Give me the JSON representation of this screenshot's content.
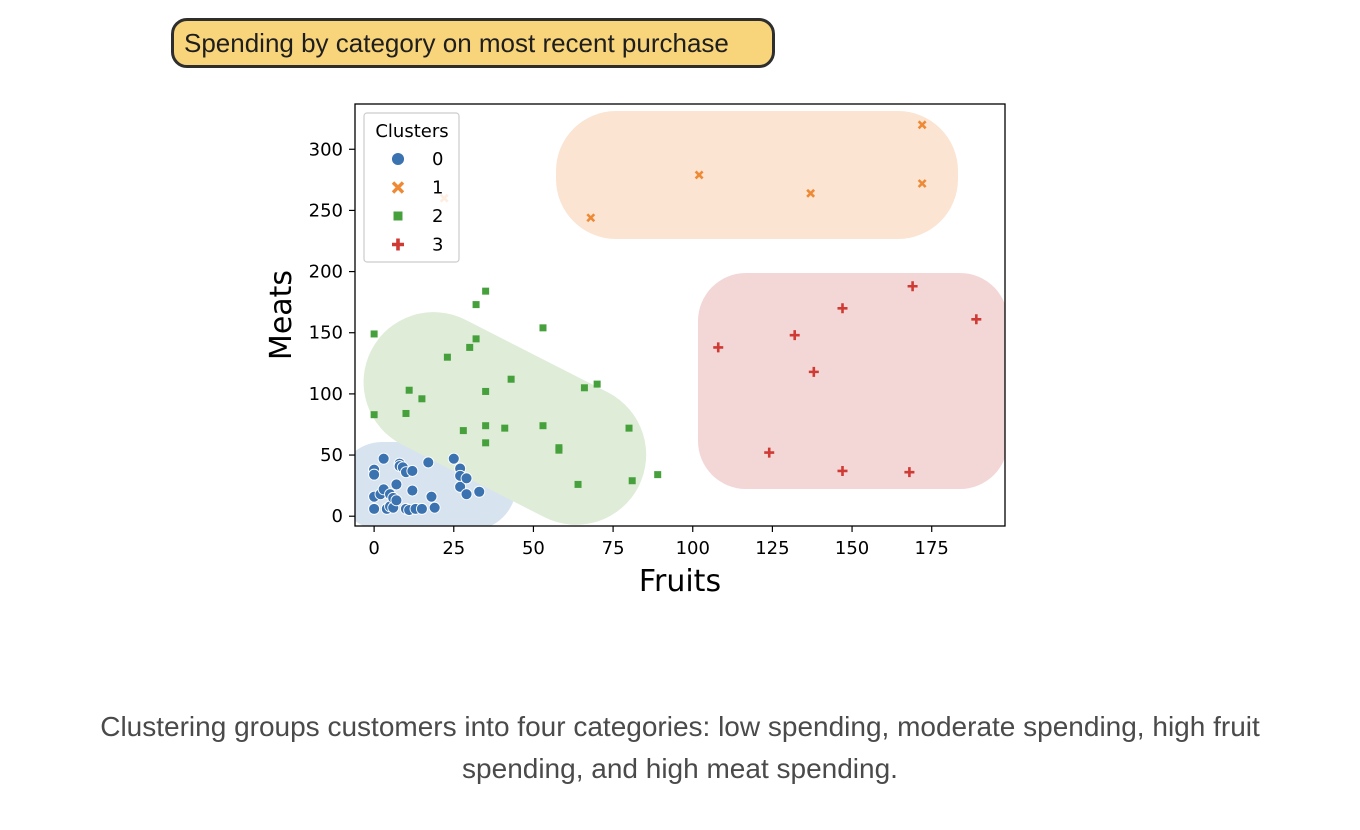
{
  "title": "Spending by category on most recent purchase",
  "caption": "Clustering groups customers into four categories: low spending, moderate spending, high fruit spending, and high meat spending.",
  "chart_data": {
    "type": "scatter",
    "xlabel": "Fruits",
    "ylabel": "Meats",
    "xlim": [
      -6,
      198
    ],
    "ylim": [
      -8,
      337
    ],
    "xticks": [
      0,
      25,
      50,
      75,
      100,
      125,
      150,
      175
    ],
    "yticks": [
      0,
      50,
      100,
      150,
      200,
      250,
      300
    ],
    "grid": false,
    "legend": {
      "title": "Clusters",
      "position": "top-left"
    },
    "series": [
      {
        "name": "0",
        "marker": "circle",
        "color": "#3b73b0",
        "points": [
          [
            0,
            38
          ],
          [
            0,
            34
          ],
          [
            0,
            16
          ],
          [
            0,
            6
          ],
          [
            2,
            18
          ],
          [
            3,
            47
          ],
          [
            3,
            22
          ],
          [
            4,
            6
          ],
          [
            5,
            8
          ],
          [
            5,
            18
          ],
          [
            6,
            15
          ],
          [
            6,
            7
          ],
          [
            7,
            26
          ],
          [
            7,
            13
          ],
          [
            8,
            43
          ],
          [
            8,
            41
          ],
          [
            9,
            40
          ],
          [
            10,
            36
          ],
          [
            10,
            6
          ],
          [
            11,
            5
          ],
          [
            12,
            37
          ],
          [
            12,
            21
          ],
          [
            13,
            6
          ],
          [
            15,
            6
          ],
          [
            17,
            44
          ],
          [
            18,
            16
          ],
          [
            19,
            7
          ],
          [
            25,
            47
          ],
          [
            27,
            39
          ],
          [
            27,
            33
          ],
          [
            27,
            24
          ],
          [
            29,
            18
          ],
          [
            29,
            31
          ],
          [
            33,
            20
          ]
        ]
      },
      {
        "name": "1",
        "marker": "x",
        "color": "#ee8a35",
        "points": [
          [
            22,
            260
          ],
          [
            68,
            244
          ],
          [
            102,
            279
          ],
          [
            137,
            264
          ],
          [
            172,
            320
          ],
          [
            172,
            272
          ]
        ]
      },
      {
        "name": "2",
        "marker": "square",
        "color": "#46a13c",
        "points": [
          [
            0,
            149
          ],
          [
            0,
            83
          ],
          [
            10,
            84
          ],
          [
            11,
            103
          ],
          [
            15,
            96
          ],
          [
            23,
            130
          ],
          [
            28,
            70
          ],
          [
            30,
            138
          ],
          [
            32,
            145
          ],
          [
            32,
            173
          ],
          [
            35,
            184
          ],
          [
            35,
            102
          ],
          [
            35,
            74
          ],
          [
            35,
            60
          ],
          [
            41,
            72
          ],
          [
            43,
            112
          ],
          [
            53,
            154
          ],
          [
            53,
            74
          ],
          [
            58,
            56
          ],
          [
            58,
            54
          ],
          [
            64,
            26
          ],
          [
            66,
            105
          ],
          [
            70,
            108
          ],
          [
            80,
            72
          ],
          [
            81,
            29
          ],
          [
            89,
            34
          ]
        ]
      },
      {
        "name": "3",
        "marker": "plus",
        "color": "#cf3a34",
        "points": [
          [
            108,
            138
          ],
          [
            124,
            52
          ],
          [
            132,
            148
          ],
          [
            138,
            118
          ],
          [
            147,
            170
          ],
          [
            147,
            37
          ],
          [
            168,
            36
          ],
          [
            169,
            188
          ],
          [
            189,
            161
          ]
        ]
      }
    ]
  }
}
